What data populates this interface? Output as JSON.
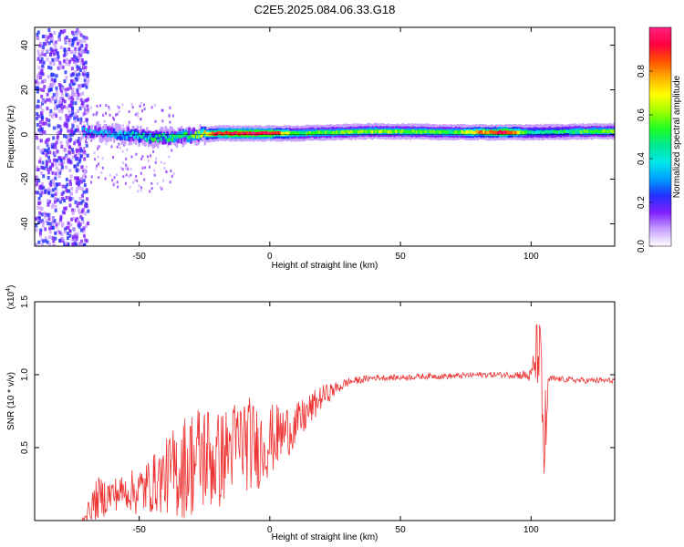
{
  "chart_data": [
    {
      "type": "heatmap",
      "title": "C2E5.2025.084.06.33.G18",
      "xlabel": "Height of straight line (km)",
      "ylabel": "Frequency (Hz)",
      "xlim": [
        -90,
        132
      ],
      "ylim": [
        -50,
        48
      ],
      "xticks": [
        -50,
        0,
        50,
        100
      ],
      "yticks": [
        -40,
        -20,
        0,
        20,
        40
      ],
      "colorbar": {
        "label": "Normalized spectral amplitude",
        "range": [
          0,
          1
        ],
        "ticks": [
          "0.0",
          "0.2",
          "0.4",
          "0.6",
          "0.8"
        ],
        "colors": [
          "#ffffff",
          "#c8a0ff",
          "#8020ff",
          "#2030ff",
          "#00a0ff",
          "#00e8e8",
          "#00e890",
          "#20ff20",
          "#a0ff00",
          "#ffff00",
          "#ffb000",
          "#ff5000",
          "#ff0040",
          "#ff2080"
        ]
      },
      "ridge": [
        {
          "x": -72,
          "freq": 1.5,
          "amp": 0.3
        },
        {
          "x": -60,
          "freq": 0.5,
          "amp": 0.35
        },
        {
          "x": -45,
          "freq": -1.5,
          "amp": 0.45
        },
        {
          "x": -30,
          "freq": -0.5,
          "amp": 0.55
        },
        {
          "x": -20,
          "freq": 0.5,
          "amp": 0.9
        },
        {
          "x": 0,
          "freq": 0.5,
          "amp": 0.95
        },
        {
          "x": 10,
          "freq": 0.5,
          "amp": 0.5
        },
        {
          "x": 40,
          "freq": 1.5,
          "amp": 0.6
        },
        {
          "x": 70,
          "freq": 1.0,
          "amp": 0.55
        },
        {
          "x": 90,
          "freq": 1.0,
          "amp": 0.95
        },
        {
          "x": 100,
          "freq": 1.0,
          "amp": 0.4
        },
        {
          "x": 132,
          "freq": 1.5,
          "amp": 0.6
        }
      ]
    },
    {
      "type": "line",
      "title": "",
      "xlabel": "Height of straight line (km)",
      "ylabel": "SNR (10 * v/v)",
      "yscale_note": "(x10",
      "yscale_exp": "4",
      "xlim": [
        -90,
        132
      ],
      "ylim": [
        0,
        1.5
      ],
      "xticks": [
        -50,
        0,
        50,
        100
      ],
      "yticks": [
        0.5,
        1.0,
        1.5
      ],
      "ytick_labels": [
        "0.5",
        "1.0",
        "1.5"
      ],
      "color": "#ee3333",
      "series": [
        {
          "x": [
            -90,
            -72,
            -66,
            -60,
            -55,
            -50,
            -45,
            -40,
            -35,
            -30,
            -25,
            -20,
            -15,
            -10,
            -5,
            0,
            5,
            10,
            15,
            20,
            25,
            30,
            40,
            50,
            60,
            70,
            80,
            90,
            95,
            100,
            103,
            105,
            107,
            110,
            120,
            132
          ],
          "values": [
            0.0,
            0.0,
            0.15,
            0.18,
            0.2,
            0.2,
            0.25,
            0.3,
            0.35,
            0.4,
            0.45,
            0.4,
            0.5,
            0.55,
            0.5,
            0.55,
            0.6,
            0.65,
            0.75,
            0.85,
            0.9,
            0.95,
            0.98,
            0.98,
            0.99,
            0.99,
            1.0,
            1.0,
            1.0,
            0.99,
            1.2,
            0.5,
            0.97,
            0.97,
            0.96,
            0.96
          ],
          "spread": [
            0.0,
            0.0,
            0.15,
            0.12,
            0.12,
            0.18,
            0.2,
            0.25,
            0.35,
            0.38,
            0.4,
            0.35,
            0.3,
            0.35,
            0.3,
            0.25,
            0.2,
            0.15,
            0.12,
            0.08,
            0.05,
            0.03,
            0.02,
            0.02,
            0.02,
            0.02,
            0.02,
            0.02,
            0.03,
            0.05,
            0.3,
            0.4,
            0.03,
            0.02,
            0.02,
            0.02
          ]
        }
      ]
    }
  ]
}
